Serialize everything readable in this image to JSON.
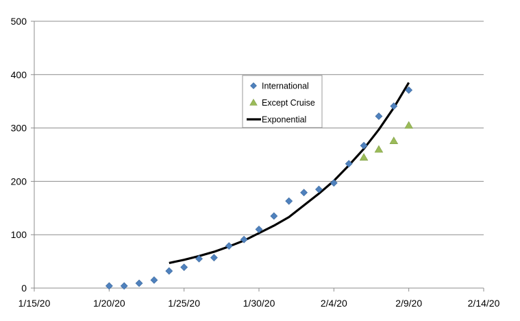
{
  "chart_data": {
    "type": "scatter",
    "title": "",
    "xlabel": "",
    "ylabel": "",
    "x_ticks": [
      "1/15/20",
      "1/20/20",
      "1/25/20",
      "1/30/20",
      "2/4/20",
      "2/9/20",
      "2/14/20"
    ],
    "xlim": [
      "2020-01-15",
      "2020-02-14"
    ],
    "ylim": [
      0,
      500
    ],
    "y_ticks": [
      0,
      100,
      200,
      300,
      400,
      500
    ],
    "grid": "horizontal",
    "legend_position": "center-right",
    "series": [
      {
        "name": "International",
        "kind": "markers",
        "marker": "diamond",
        "color": "#4F81BD",
        "points": [
          {
            "x": "2020-01-20",
            "y": 4
          },
          {
            "x": "2020-01-21",
            "y": 4
          },
          {
            "x": "2020-01-22",
            "y": 9
          },
          {
            "x": "2020-01-23",
            "y": 15
          },
          {
            "x": "2020-01-24",
            "y": 32
          },
          {
            "x": "2020-01-25",
            "y": 39
          },
          {
            "x": "2020-01-26",
            "y": 55
          },
          {
            "x": "2020-01-27",
            "y": 57
          },
          {
            "x": "2020-01-28",
            "y": 79
          },
          {
            "x": "2020-01-29",
            "y": 91
          },
          {
            "x": "2020-01-30",
            "y": 110
          },
          {
            "x": "2020-01-31",
            "y": 135
          },
          {
            "x": "2020-02-01",
            "y": 163
          },
          {
            "x": "2020-02-02",
            "y": 179
          },
          {
            "x": "2020-02-03",
            "y": 185
          },
          {
            "x": "2020-02-04",
            "y": 197
          },
          {
            "x": "2020-02-05",
            "y": 233
          },
          {
            "x": "2020-02-06",
            "y": 267
          },
          {
            "x": "2020-02-07",
            "y": 322
          },
          {
            "x": "2020-02-08",
            "y": 341
          },
          {
            "x": "2020-02-09",
            "y": 371
          }
        ]
      },
      {
        "name": "Except Cruise",
        "kind": "markers",
        "marker": "triangle",
        "color": "#9BBB59",
        "points": [
          {
            "x": "2020-02-06",
            "y": 245
          },
          {
            "x": "2020-02-07",
            "y": 260
          },
          {
            "x": "2020-02-08",
            "y": 276
          },
          {
            "x": "2020-02-09",
            "y": 305
          }
        ]
      },
      {
        "name": "Exponential",
        "kind": "line",
        "color": "#000000",
        "points": [
          {
            "x": "2020-01-24",
            "y": 47
          },
          {
            "x": "2020-01-25",
            "y": 53
          },
          {
            "x": "2020-01-26",
            "y": 60
          },
          {
            "x": "2020-01-27",
            "y": 68
          },
          {
            "x": "2020-01-28",
            "y": 78
          },
          {
            "x": "2020-01-29",
            "y": 89
          },
          {
            "x": "2020-01-30",
            "y": 103
          },
          {
            "x": "2020-01-31",
            "y": 117
          },
          {
            "x": "2020-02-01",
            "y": 133
          },
          {
            "x": "2020-02-02",
            "y": 155
          },
          {
            "x": "2020-02-03",
            "y": 177
          },
          {
            "x": "2020-02-04",
            "y": 201
          },
          {
            "x": "2020-02-05",
            "y": 230
          },
          {
            "x": "2020-02-06",
            "y": 261
          },
          {
            "x": "2020-02-07",
            "y": 297
          },
          {
            "x": "2020-02-08",
            "y": 338
          },
          {
            "x": "2020-02-09",
            "y": 385
          }
        ]
      }
    ]
  }
}
